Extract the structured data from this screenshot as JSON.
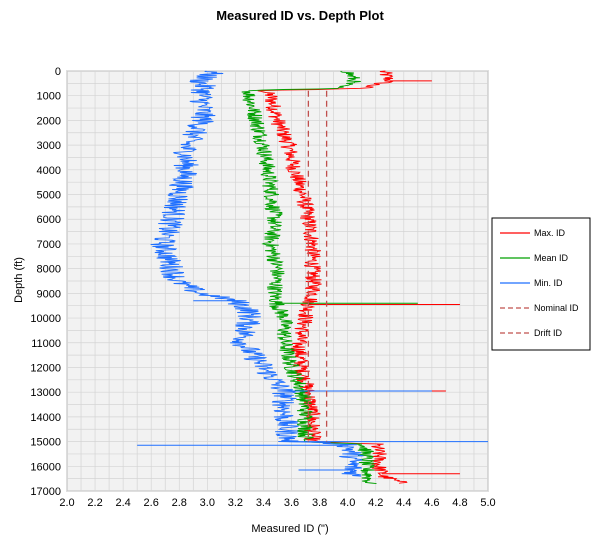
{
  "chart_data": {
    "type": "line",
    "title": "Measured ID vs. Depth Plot",
    "xlabel": "Measured ID (\")",
    "ylabel": "Depth (ft)",
    "xlim": [
      2.0,
      5.0
    ],
    "ylim": [
      0,
      17000
    ],
    "y_inverted": true,
    "grid": true,
    "legend_position": "right",
    "x_ticks": [
      "2.0",
      "2.2",
      "2.4",
      "2.6",
      "2.8",
      "3.0",
      "3.2",
      "3.4",
      "3.6",
      "3.8",
      "4.0",
      "4.2",
      "4.4",
      "4.6",
      "4.8",
      "5.0"
    ],
    "y_ticks": [
      "0",
      "1000",
      "2000",
      "3000",
      "4000",
      "5000",
      "6000",
      "7000",
      "8000",
      "9000",
      "10000",
      "11000",
      "12000",
      "13000",
      "14000",
      "15000",
      "16000",
      "17000"
    ],
    "series": [
      {
        "name": "Max. ID",
        "color": "#ff0000",
        "style": "solid",
        "depth": [
          0,
          400,
          700,
          800,
          1000,
          2000,
          3000,
          4000,
          5000,
          6000,
          7000,
          8000,
          9000,
          9500,
          10000,
          11000,
          12000,
          13000,
          14000,
          15000,
          15100,
          15500,
          16000,
          16400,
          16700
        ],
        "values": [
          4.25,
          4.3,
          4.1,
          3.4,
          3.45,
          3.5,
          3.58,
          3.62,
          3.68,
          3.72,
          3.75,
          3.75,
          3.76,
          3.72,
          3.7,
          3.65,
          3.67,
          3.72,
          3.75,
          3.75,
          4.2,
          4.22,
          4.22,
          4.25,
          4.4
        ],
        "spike_depths": [
          400,
          9450,
          12950,
          16300
        ],
        "spike_values": [
          4.6,
          4.8,
          4.7,
          4.8
        ]
      },
      {
        "name": "Mean ID",
        "color": "#00a000",
        "style": "solid",
        "depth": [
          0,
          400,
          700,
          800,
          1000,
          2000,
          3000,
          4000,
          5000,
          6000,
          7000,
          8000,
          9000,
          9500,
          10000,
          11000,
          12000,
          13000,
          14000,
          15000,
          15100,
          15500,
          16000,
          16400,
          16700
        ],
        "values": [
          4.0,
          4.05,
          3.9,
          3.3,
          3.3,
          3.35,
          3.4,
          3.43,
          3.46,
          3.48,
          3.45,
          3.5,
          3.48,
          3.5,
          3.55,
          3.55,
          3.6,
          3.68,
          3.7,
          3.7,
          4.12,
          4.13,
          4.13,
          4.15,
          4.15
        ],
        "spike_depths": [
          9400
        ],
        "spike_values": [
          4.5
        ]
      },
      {
        "name": "Min. ID",
        "color": "#1f6fff",
        "style": "solid",
        "depth": [
          0,
          400,
          700,
          800,
          1000,
          2000,
          3000,
          4000,
          5000,
          6000,
          7000,
          8000,
          8500,
          9000,
          9300,
          9700,
          10000,
          11000,
          12000,
          13000,
          14000,
          15000,
          15100,
          15500,
          16000,
          16400
        ],
        "values": [
          3.05,
          2.95,
          2.98,
          2.97,
          2.96,
          2.97,
          2.85,
          2.85,
          2.8,
          2.75,
          2.68,
          2.75,
          2.78,
          2.95,
          3.2,
          3.3,
          3.3,
          3.25,
          3.4,
          3.55,
          3.55,
          3.58,
          4.0,
          4.03,
          4.03,
          4.05
        ],
        "spike_depths": [
          9300,
          12950,
          15000,
          15150,
          16150
        ],
        "spike_values": [
          2.9,
          4.6,
          5.0,
          2.5,
          3.65
        ]
      },
      {
        "name": "Nominal ID",
        "color": "#c0504d",
        "style": "dashed",
        "depth": [
          800,
          15000
        ],
        "values": [
          3.85,
          3.85
        ]
      },
      {
        "name": "Drift ID",
        "color": "#c0504d",
        "style": "dashed",
        "depth": [
          800,
          15000
        ],
        "values": [
          3.72,
          3.72
        ]
      }
    ]
  }
}
